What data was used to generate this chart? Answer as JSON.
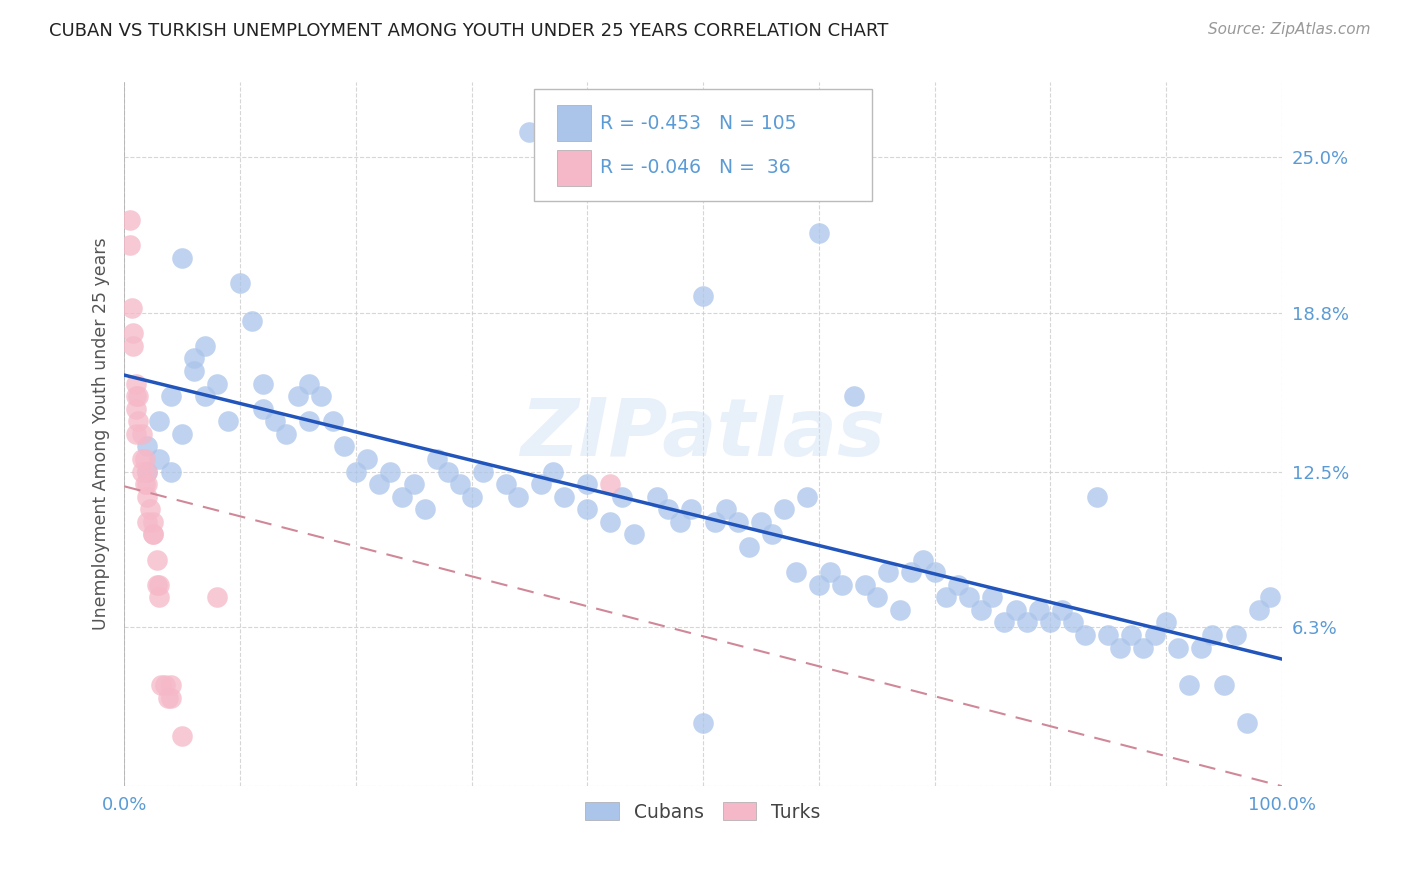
{
  "title": "CUBAN VS TURKISH UNEMPLOYMENT AMONG YOUTH UNDER 25 YEARS CORRELATION CHART",
  "source": "Source: ZipAtlas.com",
  "ylabel": "Unemployment Among Youth under 25 years",
  "xlim": [
    0.0,
    1.0
  ],
  "ylim": [
    0.0,
    0.28
  ],
  "yticks": [
    0.0,
    0.063,
    0.125,
    0.188,
    0.25
  ],
  "ytick_labels": [
    "",
    "6.3%",
    "12.5%",
    "18.8%",
    "25.0%"
  ],
  "xtick_positions": [
    0.0,
    0.1,
    0.2,
    0.3,
    0.4,
    0.5,
    0.6,
    0.7,
    0.8,
    0.9,
    1.0
  ],
  "xtick_labels": [
    "0.0%",
    "",
    "",
    "",
    "",
    "",
    "",
    "",
    "",
    "",
    "100.0%"
  ],
  "legend_R1": "-0.453",
  "legend_N1": "105",
  "legend_R2": "-0.046",
  "legend_N2": " 36",
  "watermark": "ZIPatlas",
  "blue_light": "#aac4ea",
  "pink_light": "#f5b8c8",
  "axis_color": "#5b9bd5",
  "trend_blue_color": "#2255bb",
  "trend_pink_color": "#d08898",
  "cubans_x": [
    0.02,
    0.02,
    0.03,
    0.03,
    0.04,
    0.04,
    0.05,
    0.05,
    0.06,
    0.06,
    0.07,
    0.07,
    0.08,
    0.09,
    0.1,
    0.11,
    0.12,
    0.12,
    0.13,
    0.14,
    0.15,
    0.16,
    0.16,
    0.17,
    0.18,
    0.19,
    0.2,
    0.21,
    0.22,
    0.23,
    0.24,
    0.25,
    0.26,
    0.27,
    0.28,
    0.29,
    0.3,
    0.31,
    0.33,
    0.34,
    0.36,
    0.37,
    0.38,
    0.4,
    0.4,
    0.42,
    0.43,
    0.44,
    0.46,
    0.47,
    0.48,
    0.49,
    0.5,
    0.51,
    0.52,
    0.53,
    0.54,
    0.55,
    0.56,
    0.57,
    0.58,
    0.59,
    0.6,
    0.61,
    0.62,
    0.63,
    0.64,
    0.65,
    0.66,
    0.67,
    0.68,
    0.69,
    0.7,
    0.71,
    0.72,
    0.73,
    0.74,
    0.75,
    0.76,
    0.77,
    0.78,
    0.79,
    0.8,
    0.81,
    0.82,
    0.83,
    0.84,
    0.85,
    0.86,
    0.87,
    0.88,
    0.89,
    0.9,
    0.91,
    0.92,
    0.93,
    0.94,
    0.95,
    0.96,
    0.97,
    0.98,
    0.99,
    0.5,
    0.35,
    0.6
  ],
  "cubans_y": [
    0.135,
    0.125,
    0.13,
    0.145,
    0.155,
    0.125,
    0.14,
    0.21,
    0.17,
    0.165,
    0.175,
    0.155,
    0.16,
    0.145,
    0.2,
    0.185,
    0.16,
    0.15,
    0.145,
    0.14,
    0.155,
    0.145,
    0.16,
    0.155,
    0.145,
    0.135,
    0.125,
    0.13,
    0.12,
    0.125,
    0.115,
    0.12,
    0.11,
    0.13,
    0.125,
    0.12,
    0.115,
    0.125,
    0.12,
    0.115,
    0.12,
    0.125,
    0.115,
    0.11,
    0.12,
    0.105,
    0.115,
    0.1,
    0.115,
    0.11,
    0.105,
    0.11,
    0.195,
    0.105,
    0.11,
    0.105,
    0.095,
    0.105,
    0.1,
    0.11,
    0.085,
    0.115,
    0.08,
    0.085,
    0.08,
    0.155,
    0.08,
    0.075,
    0.085,
    0.07,
    0.085,
    0.09,
    0.085,
    0.075,
    0.08,
    0.075,
    0.07,
    0.075,
    0.065,
    0.07,
    0.065,
    0.07,
    0.065,
    0.07,
    0.065,
    0.06,
    0.115,
    0.06,
    0.055,
    0.06,
    0.055,
    0.06,
    0.065,
    0.055,
    0.04,
    0.055,
    0.06,
    0.04,
    0.06,
    0.025,
    0.07,
    0.075,
    0.025,
    0.26,
    0.22
  ],
  "turks_x": [
    0.005,
    0.005,
    0.007,
    0.008,
    0.008,
    0.01,
    0.01,
    0.01,
    0.01,
    0.012,
    0.012,
    0.015,
    0.015,
    0.015,
    0.018,
    0.018,
    0.02,
    0.02,
    0.02,
    0.02,
    0.022,
    0.025,
    0.025,
    0.025,
    0.028,
    0.028,
    0.03,
    0.03,
    0.032,
    0.035,
    0.038,
    0.04,
    0.04,
    0.05,
    0.08,
    0.42
  ],
  "turks_y": [
    0.225,
    0.215,
    0.19,
    0.18,
    0.175,
    0.16,
    0.155,
    0.15,
    0.14,
    0.155,
    0.145,
    0.14,
    0.13,
    0.125,
    0.13,
    0.12,
    0.125,
    0.12,
    0.115,
    0.105,
    0.11,
    0.1,
    0.105,
    0.1,
    0.09,
    0.08,
    0.08,
    0.075,
    0.04,
    0.04,
    0.035,
    0.035,
    0.04,
    0.02,
    0.075,
    0.12
  ]
}
